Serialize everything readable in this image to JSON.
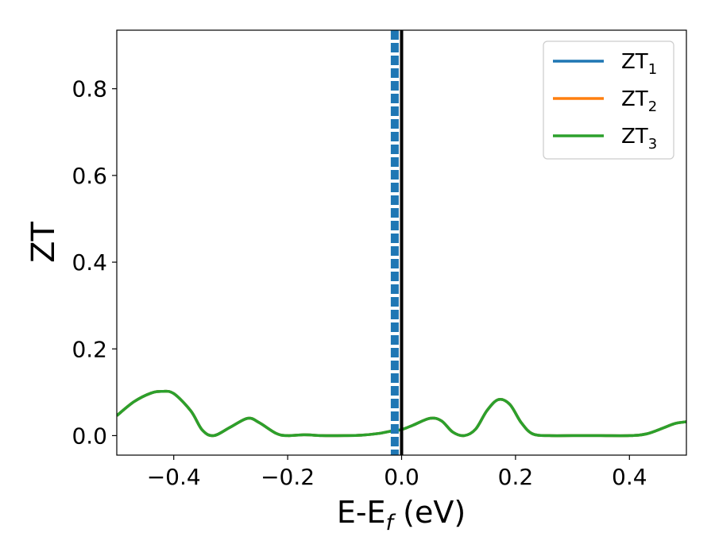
{
  "chart_data": {
    "type": "line",
    "xlabel_main": "E-E",
    "xlabel_sub": "f",
    "xlabel_rest": " (eV)",
    "ylabel": "ZT",
    "xlim": [
      -0.5,
      0.5
    ],
    "ylim": [
      -0.045,
      0.935
    ],
    "x_ticks": [
      -0.4,
      -0.2,
      0.0,
      0.2,
      0.4
    ],
    "x_tick_labels": [
      "−0.4",
      "−0.2",
      "0.0",
      "0.2",
      "0.4"
    ],
    "y_ticks": [
      0.0,
      0.2,
      0.4,
      0.6,
      0.8
    ],
    "y_tick_labels": [
      "0.0",
      "0.2",
      "0.4",
      "0.6",
      "0.8"
    ],
    "grid": false,
    "legend_position": "top-right",
    "fermi_line_x": 0.0,
    "dashed_line_x": -0.012,
    "series": [
      {
        "name": "ZT",
        "name_sub": "1",
        "color": "#1f77b4",
        "x": [
          -0.5,
          -0.47,
          -0.44,
          -0.42,
          -0.4,
          -0.37,
          -0.35,
          -0.33,
          -0.3,
          -0.27,
          -0.25,
          -0.22,
          -0.2,
          -0.17,
          -0.14,
          -0.1,
          -0.07,
          -0.04,
          -0.02,
          0.0,
          0.02,
          0.05,
          0.07,
          0.09,
          0.11,
          0.13,
          0.15,
          0.17,
          0.19,
          0.21,
          0.23,
          0.26,
          0.3,
          0.35,
          0.4,
          0.43,
          0.46,
          0.48,
          0.5
        ],
        "y": [
          0.046,
          0.078,
          0.098,
          0.102,
          0.097,
          0.057,
          0.013,
          0.0,
          0.02,
          0.04,
          0.03,
          0.005,
          0.0,
          0.002,
          0.0,
          0.0,
          0.001,
          0.005,
          0.01,
          0.014,
          0.024,
          0.04,
          0.034,
          0.008,
          0.0,
          0.015,
          0.058,
          0.083,
          0.072,
          0.03,
          0.004,
          0.0,
          0.0,
          0.0,
          0.0,
          0.004,
          0.018,
          0.028,
          0.032
        ]
      },
      {
        "name": "ZT",
        "name_sub": "2",
        "color": "#ff7f0e",
        "x": [
          -0.5,
          -0.47,
          -0.44,
          -0.42,
          -0.4,
          -0.37,
          -0.35,
          -0.33,
          -0.3,
          -0.27,
          -0.25,
          -0.22,
          -0.2,
          -0.17,
          -0.14,
          -0.1,
          -0.07,
          -0.04,
          -0.02,
          0.0,
          0.02,
          0.05,
          0.07,
          0.09,
          0.11,
          0.13,
          0.15,
          0.17,
          0.19,
          0.21,
          0.23,
          0.26,
          0.3,
          0.35,
          0.4,
          0.43,
          0.46,
          0.48,
          0.5
        ],
        "y": [
          0.046,
          0.078,
          0.098,
          0.102,
          0.097,
          0.057,
          0.013,
          0.0,
          0.02,
          0.04,
          0.03,
          0.005,
          0.0,
          0.002,
          0.0,
          0.0,
          0.001,
          0.005,
          0.01,
          0.014,
          0.024,
          0.04,
          0.034,
          0.008,
          0.0,
          0.015,
          0.058,
          0.083,
          0.072,
          0.03,
          0.004,
          0.0,
          0.0,
          0.0,
          0.0,
          0.004,
          0.018,
          0.028,
          0.032
        ]
      },
      {
        "name": "ZT",
        "name_sub": "3",
        "color": "#2ca02c",
        "x": [
          -0.5,
          -0.47,
          -0.44,
          -0.42,
          -0.4,
          -0.37,
          -0.35,
          -0.33,
          -0.3,
          -0.27,
          -0.25,
          -0.22,
          -0.2,
          -0.17,
          -0.14,
          -0.1,
          -0.07,
          -0.04,
          -0.02,
          0.0,
          0.02,
          0.05,
          0.07,
          0.09,
          0.11,
          0.13,
          0.15,
          0.17,
          0.19,
          0.21,
          0.23,
          0.26,
          0.3,
          0.35,
          0.4,
          0.43,
          0.46,
          0.48,
          0.5
        ],
        "y": [
          0.046,
          0.078,
          0.098,
          0.102,
          0.097,
          0.057,
          0.013,
          0.0,
          0.02,
          0.04,
          0.03,
          0.005,
          0.0,
          0.002,
          0.0,
          0.0,
          0.001,
          0.005,
          0.01,
          0.014,
          0.024,
          0.04,
          0.034,
          0.008,
          0.0,
          0.015,
          0.058,
          0.083,
          0.072,
          0.03,
          0.004,
          0.0,
          0.0,
          0.0,
          0.0,
          0.004,
          0.018,
          0.028,
          0.032
        ]
      }
    ]
  }
}
